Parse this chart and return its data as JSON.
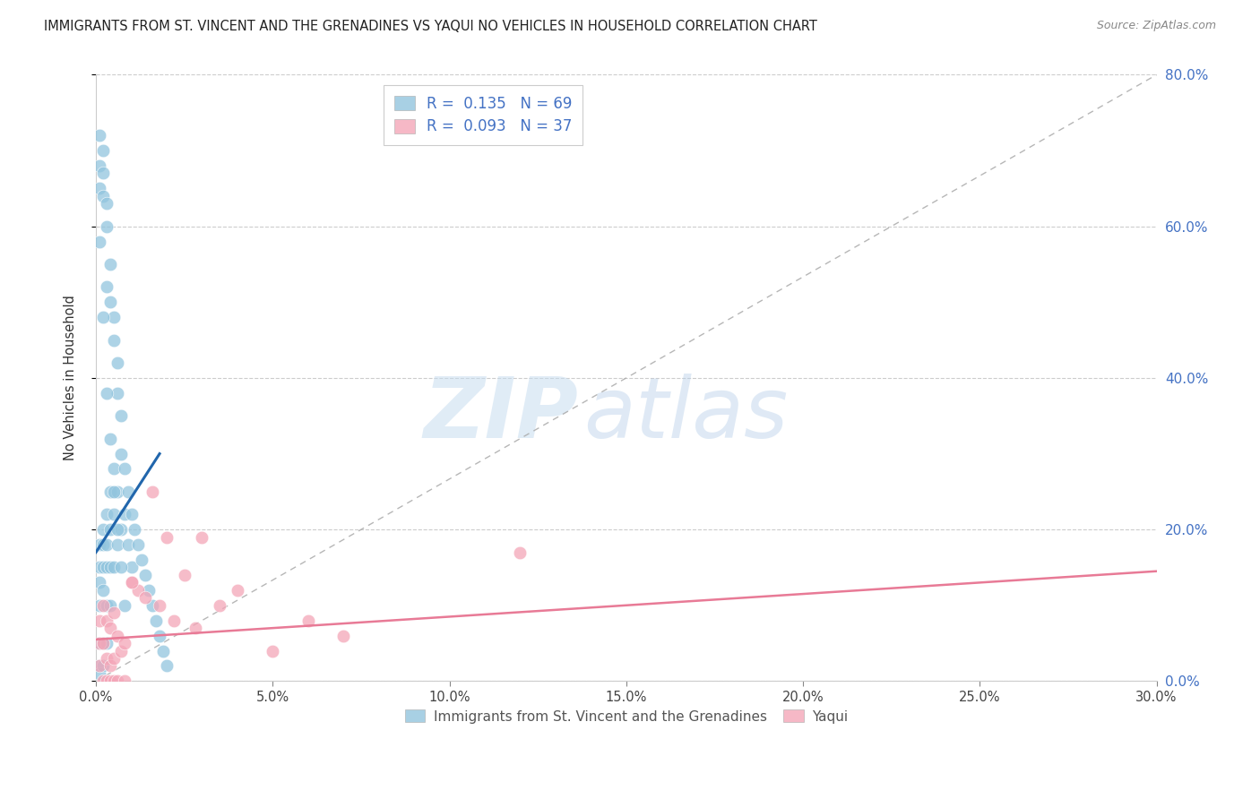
{
  "title": "IMMIGRANTS FROM ST. VINCENT AND THE GRENADINES VS YAQUI NO VEHICLES IN HOUSEHOLD CORRELATION CHART",
  "source": "Source: ZipAtlas.com",
  "ylabel": "No Vehicles in Household",
  "xlim": [
    0.0,
    0.3
  ],
  "ylim": [
    0.0,
    0.8
  ],
  "xticks": [
    0.0,
    0.05,
    0.1,
    0.15,
    0.2,
    0.25,
    0.3
  ],
  "yticks": [
    0.0,
    0.2,
    0.4,
    0.6,
    0.8
  ],
  "ytick_labels_right": [
    "0.0%",
    "20.0%",
    "40.0%",
    "60.0%",
    "80.0%"
  ],
  "xtick_labels": [
    "0.0%",
    "5.0%",
    "10.0%",
    "15.0%",
    "20.0%",
    "25.0%",
    "30.0%"
  ],
  "blue_color": "#92c5de",
  "pink_color": "#f4a6b8",
  "blue_line_color": "#2166ac",
  "pink_line_color": "#e87a96",
  "right_axis_color": "#4472c4",
  "grid_color": "#cccccc",
  "legend_label1": "Immigrants from St. Vincent and the Grenadines",
  "legend_label2": "Yaqui",
  "watermark_zip": "ZIP",
  "watermark_atlas": "atlas",
  "blue_x": [
    0.001,
    0.001,
    0.001,
    0.001,
    0.001,
    0.001,
    0.001,
    0.001,
    0.001,
    0.001,
    0.002,
    0.002,
    0.002,
    0.002,
    0.002,
    0.002,
    0.002,
    0.002,
    0.002,
    0.003,
    0.003,
    0.003,
    0.003,
    0.003,
    0.003,
    0.003,
    0.003,
    0.004,
    0.004,
    0.004,
    0.004,
    0.004,
    0.004,
    0.005,
    0.005,
    0.005,
    0.005,
    0.005,
    0.006,
    0.006,
    0.006,
    0.006,
    0.007,
    0.007,
    0.007,
    0.008,
    0.008,
    0.009,
    0.009,
    0.01,
    0.01,
    0.011,
    0.012,
    0.013,
    0.014,
    0.015,
    0.016,
    0.017,
    0.018,
    0.019,
    0.02,
    0.001,
    0.002,
    0.003,
    0.004,
    0.005,
    0.006,
    0.007,
    0.008
  ],
  "blue_y": [
    0.72,
    0.68,
    0.65,
    0.18,
    0.15,
    0.13,
    0.1,
    0.05,
    0.02,
    0.01,
    0.7,
    0.67,
    0.64,
    0.2,
    0.18,
    0.15,
    0.12,
    0.05,
    0.02,
    0.63,
    0.6,
    0.52,
    0.22,
    0.18,
    0.15,
    0.1,
    0.05,
    0.55,
    0.5,
    0.25,
    0.2,
    0.15,
    0.1,
    0.48,
    0.45,
    0.28,
    0.22,
    0.15,
    0.42,
    0.38,
    0.25,
    0.18,
    0.35,
    0.3,
    0.2,
    0.28,
    0.22,
    0.25,
    0.18,
    0.22,
    0.15,
    0.2,
    0.18,
    0.16,
    0.14,
    0.12,
    0.1,
    0.08,
    0.06,
    0.04,
    0.02,
    0.58,
    0.48,
    0.38,
    0.32,
    0.25,
    0.2,
    0.15,
    0.1
  ],
  "pink_x": [
    0.001,
    0.001,
    0.001,
    0.002,
    0.002,
    0.003,
    0.003,
    0.004,
    0.004,
    0.005,
    0.005,
    0.006,
    0.007,
    0.008,
    0.01,
    0.012,
    0.014,
    0.016,
    0.018,
    0.02,
    0.022,
    0.025,
    0.028,
    0.03,
    0.035,
    0.04,
    0.05,
    0.06,
    0.07,
    0.12,
    0.002,
    0.003,
    0.004,
    0.005,
    0.006,
    0.008,
    0.01
  ],
  "pink_y": [
    0.08,
    0.05,
    0.02,
    0.1,
    0.05,
    0.08,
    0.03,
    0.07,
    0.02,
    0.09,
    0.03,
    0.06,
    0.04,
    0.05,
    0.13,
    0.12,
    0.11,
    0.25,
    0.1,
    0.19,
    0.08,
    0.14,
    0.07,
    0.19,
    0.1,
    0.12,
    0.04,
    0.08,
    0.06,
    0.17,
    0.0,
    0.0,
    0.0,
    0.0,
    0.0,
    0.0,
    0.13
  ],
  "blue_trend_x": [
    0.0,
    0.018
  ],
  "blue_trend_y": [
    0.17,
    0.3
  ],
  "pink_trend_x": [
    0.0,
    0.3
  ],
  "pink_trend_y": [
    0.055,
    0.145
  ]
}
